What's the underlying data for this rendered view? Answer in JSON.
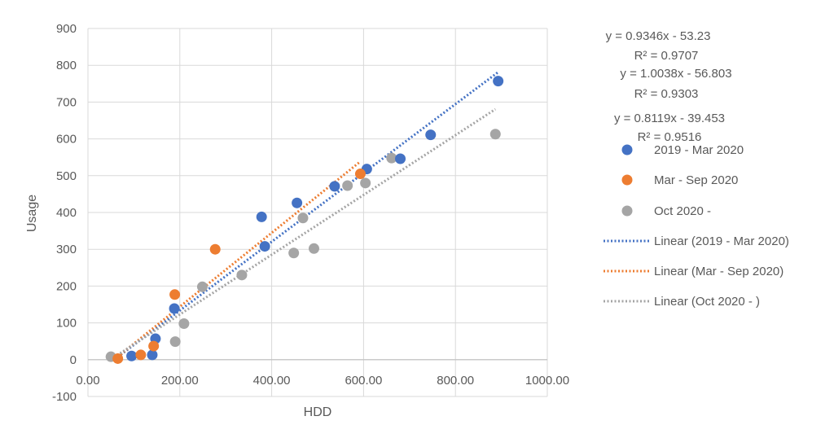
{
  "chart_data": {
    "type": "scatter",
    "xlabel": "HDD",
    "ylabel": "Usage",
    "xlim": [
      0,
      1000
    ],
    "ylim": [
      -100,
      900
    ],
    "x_ticks": [
      "0.00",
      "200.00",
      "400.00",
      "600.00",
      "800.00",
      "1000.00"
    ],
    "y_ticks": [
      "-100",
      "0",
      "100",
      "200",
      "300",
      "400",
      "500",
      "600",
      "700",
      "800",
      "900"
    ],
    "grid": true,
    "legend_position": "right",
    "series": [
      {
        "name": "2019 - Mar 2020",
        "color": "#4472C4",
        "points": [
          [
            95,
            10
          ],
          [
            140,
            13
          ],
          [
            147,
            57
          ],
          [
            188,
            139
          ],
          [
            378,
            388
          ],
          [
            385,
            308
          ],
          [
            455,
            426
          ],
          [
            537,
            471
          ],
          [
            607,
            518
          ],
          [
            680,
            546
          ],
          [
            746,
            611
          ],
          [
            893,
            757
          ]
        ],
        "trendline": {
          "label": "Linear (2019 - Mar 2020)",
          "equation": "y = 0.9346x - 53.23",
          "r2": "R² = 0.9707",
          "slope": 0.9346,
          "intercept": -53.23,
          "x_range": [
            65,
            893
          ]
        }
      },
      {
        "name": "Mar - Sep 2020",
        "color": "#ED7D31",
        "points": [
          [
            65,
            3
          ],
          [
            115,
            13
          ],
          [
            143,
            37
          ],
          [
            189,
            177
          ],
          [
            277,
            300
          ],
          [
            593,
            505
          ]
        ],
        "trendline": {
          "label": "Linear (Mar - Sep 2020)",
          "equation": "y = 1.0038x - 56.803",
          "r2": "R² = 0.9303",
          "slope": 1.0038,
          "intercept": -56.803,
          "x_range": [
            65,
            593
          ]
        }
      },
      {
        "name": "Oct 2020 -",
        "color": "#A5A5A5",
        "points": [
          [
            50,
            8
          ],
          [
            190,
            49
          ],
          [
            209,
            98
          ],
          [
            249,
            198
          ],
          [
            335,
            230
          ],
          [
            448,
            290
          ],
          [
            468,
            385
          ],
          [
            492,
            302
          ],
          [
            565,
            473
          ],
          [
            604,
            480
          ],
          [
            661,
            548
          ],
          [
            887,
            613
          ]
        ],
        "trendline": {
          "label": "Linear (Oct 2020 - )",
          "equation": "y = 0.8119x - 39.453",
          "r2": "R² = 0.9516",
          "slope": 0.8119,
          "intercept": -39.453,
          "x_range": [
            50,
            887
          ]
        }
      }
    ]
  }
}
